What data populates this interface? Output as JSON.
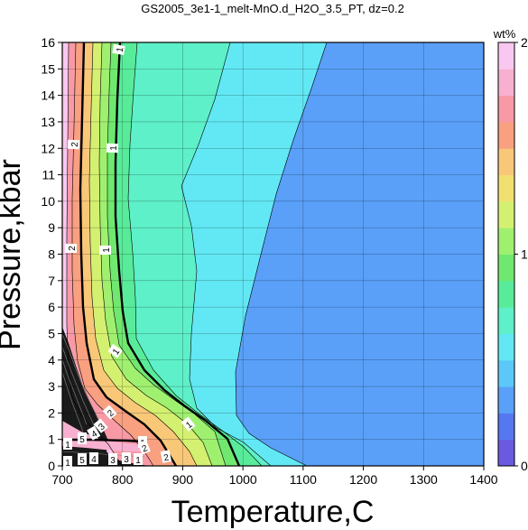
{
  "chart_data": {
    "type": "contour",
    "title": "GS2005_3e1-1_melt-MnO.d_H2O_3.5_PT, dz=0.2",
    "xlabel": "Temperature,C",
    "ylabel": "Pressure,kbar",
    "xlim": [
      700,
      1400
    ],
    "ylim": [
      0,
      16
    ],
    "xticks": [
      700,
      800,
      900,
      1000,
      1100,
      1200,
      1300,
      1400
    ],
    "yticks": [
      0,
      1,
      2,
      3,
      4,
      5,
      6,
      7,
      8,
      9,
      10,
      11,
      12,
      13,
      14,
      15,
      16
    ],
    "grid": true,
    "contour_interval": 0.2,
    "colorbar": {
      "title": "wt%",
      "range": [
        0,
        2
      ],
      "ticks": [
        0,
        1,
        2
      ],
      "colors": [
        "#6a5ae0",
        "#5578f0",
        "#5aa0f8",
        "#5cc8f8",
        "#62e8f4",
        "#5ef0c8",
        "#58ec9a",
        "#70e870",
        "#a0f070",
        "#d4f070",
        "#f0e070",
        "#f8c878",
        "#f8a080",
        "#f89aa6",
        "#f8b0d0",
        "#f8c8f0"
      ]
    },
    "contour_labels": [
      "1",
      "1",
      "1",
      "1",
      "1",
      "1",
      "2",
      "2",
      "2",
      "2",
      "2",
      "1",
      "5",
      "4",
      "3",
      "1",
      "4",
      "5",
      "3",
      "3",
      "1"
    ]
  }
}
